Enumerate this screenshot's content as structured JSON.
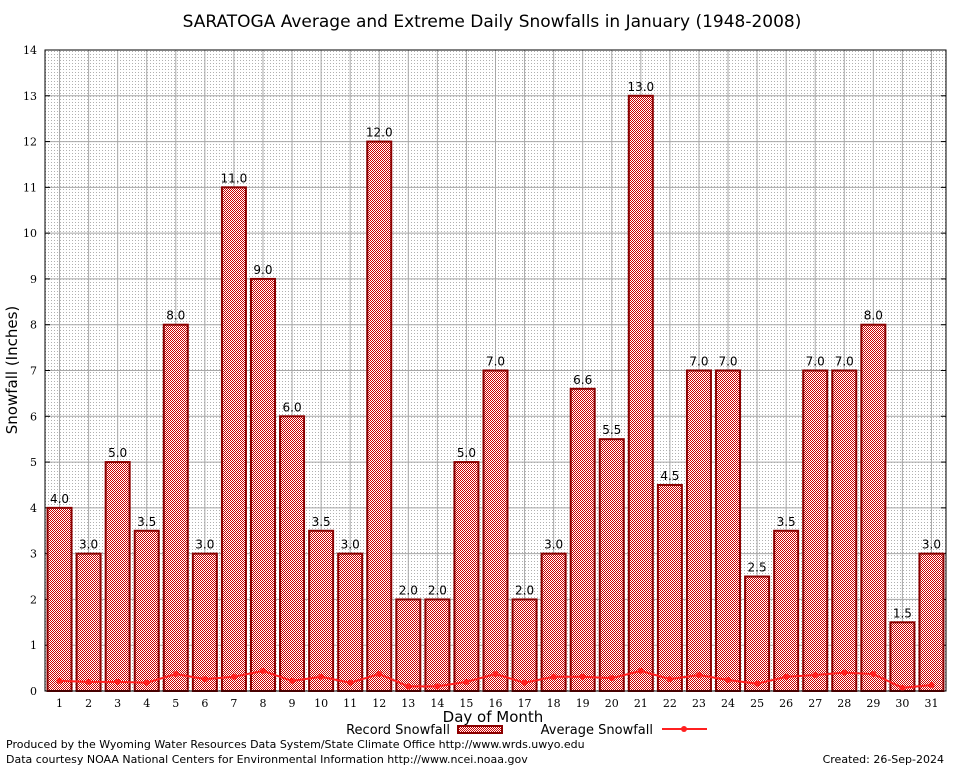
{
  "chart_data": {
    "type": "bar",
    "title": "SARATOGA Average and Extreme Daily Snowfalls in January (1948-2008)",
    "xlabel": "Day of Month",
    "ylabel": "Snowfall (Inches)",
    "ylim": [
      0,
      14
    ],
    "yticks": [
      0,
      1,
      2,
      3,
      4,
      5,
      6,
      7,
      8,
      9,
      10,
      11,
      12,
      13,
      14
    ],
    "grid": true,
    "legend_placement": "bottom",
    "categories": [
      "1",
      "2",
      "3",
      "4",
      "5",
      "6",
      "7",
      "8",
      "9",
      "10",
      "11",
      "12",
      "13",
      "14",
      "15",
      "16",
      "17",
      "18",
      "19",
      "20",
      "21",
      "22",
      "23",
      "24",
      "25",
      "26",
      "27",
      "28",
      "29",
      "30",
      "31"
    ],
    "series": [
      {
        "name": "Record Snowfall",
        "type": "bar",
        "color": "#cc0000",
        "values": [
          4.0,
          3.0,
          5.0,
          3.5,
          8.0,
          3.0,
          11.0,
          9.0,
          6.0,
          3.5,
          3.0,
          12.0,
          2.0,
          2.0,
          5.0,
          7.0,
          2.0,
          3.0,
          6.6,
          5.5,
          13.0,
          4.5,
          7.0,
          7.0,
          2.5,
          3.5,
          7.0,
          7.0,
          8.0,
          1.5,
          3.0
        ],
        "labels": [
          "4.0",
          "3.0",
          "5.0",
          "3.5",
          "8.0",
          "3.0",
          "11.0",
          "9.0",
          "6.0",
          "3.5",
          "3.0",
          "12.0",
          "2.0",
          "2.0",
          "5.0",
          "7.0",
          "2.0",
          "3.0",
          "6.6",
          "5.5",
          "13.0",
          "4.5",
          "7.0",
          "7.0",
          "2.5",
          "3.5",
          "7.0",
          "7.0",
          "8.0",
          "1.5",
          "3.0"
        ]
      },
      {
        "name": "Average Snowfall",
        "type": "line",
        "color": "#ff2020",
        "values": [
          0.22,
          0.2,
          0.2,
          0.18,
          0.37,
          0.26,
          0.31,
          0.44,
          0.22,
          0.31,
          0.18,
          0.37,
          0.1,
          0.1,
          0.2,
          0.37,
          0.18,
          0.31,
          0.31,
          0.28,
          0.44,
          0.26,
          0.35,
          0.24,
          0.16,
          0.31,
          0.35,
          0.4,
          0.37,
          0.07,
          0.13
        ]
      }
    ]
  },
  "footer": {
    "line1": "Produced by the Wyoming Water Resources Data System/State Climate Office http://www.wrds.uwyo.edu",
    "line2": "Data courtesy NOAA National Centers for Environmental Information http://www.ncei.noaa.gov",
    "created": "Created:  26-Sep-2024"
  }
}
